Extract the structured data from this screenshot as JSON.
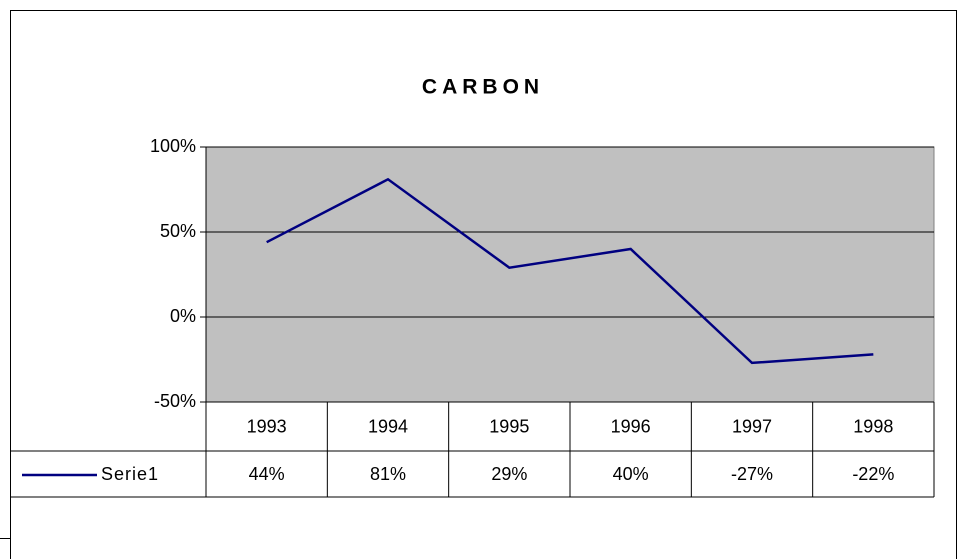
{
  "chart_data": {
    "type": "line",
    "title": "CARBON",
    "categories": [
      "1993",
      "1994",
      "1995",
      "1996",
      "1997",
      "1998"
    ],
    "series": [
      {
        "name": "Serie1",
        "color": "#000080",
        "values": [
          44,
          81,
          29,
          40,
          -27,
          -22
        ],
        "value_labels": [
          "44%",
          "81%",
          "29%",
          "40%",
          "-27%",
          "-22%"
        ]
      }
    ],
    "ylim": [
      -50,
      100
    ],
    "yticks": [
      {
        "value": -50,
        "label": "-50%"
      },
      {
        "value": 0,
        "label": "0%"
      },
      {
        "value": 50,
        "label": "50%"
      },
      {
        "value": 100,
        "label": "100%"
      }
    ],
    "grid": true,
    "plot_background": "#c0c0c0"
  }
}
